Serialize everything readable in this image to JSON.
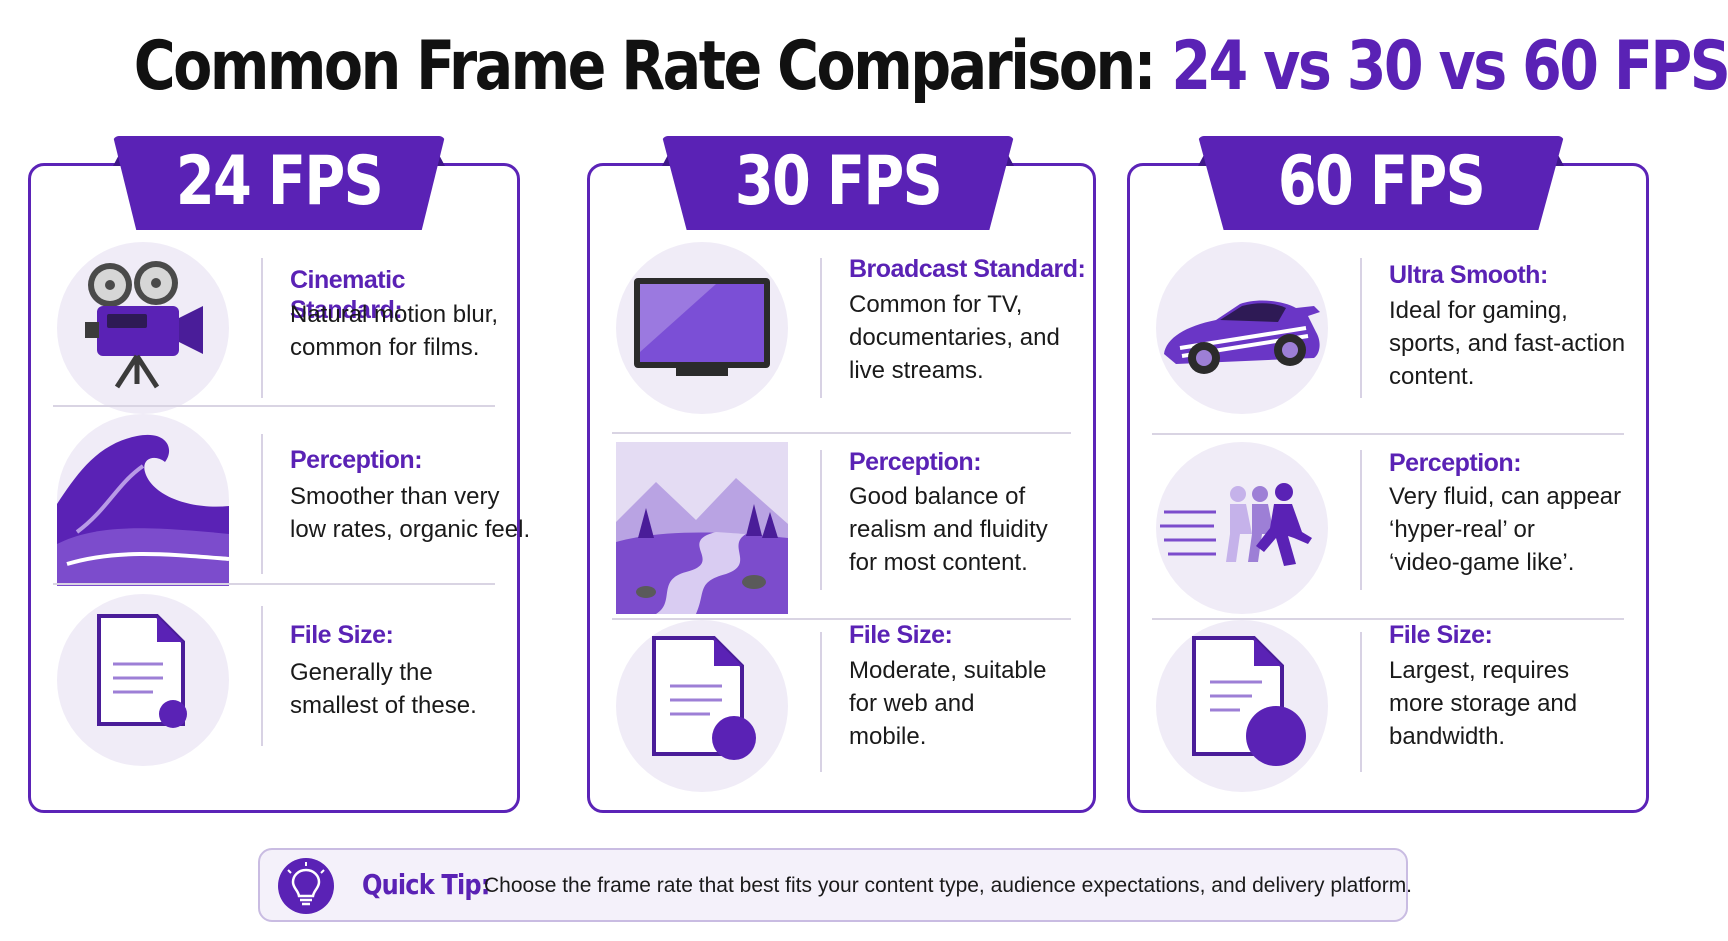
{
  "title": {
    "prefix": "Common Frame Rate Comparison: ",
    "accent": "24 vs 30 vs 60 FPS"
  },
  "colors": {
    "accent": "#5a22b5",
    "card_border": "#5b23b7",
    "icon_bg": "#f0ecf7"
  },
  "cards": [
    {
      "label": "24 FPS",
      "rows": [
        {
          "icon": "film-camera-icon",
          "heading": "Cinematic Standard:",
          "lines": [
            "Natural motion blur,",
            "common for films."
          ]
        },
        {
          "icon": "wave-icon",
          "heading": "Perception:",
          "lines": [
            "Smoother than very",
            "low rates, organic feel."
          ]
        },
        {
          "icon": "small-file-icon",
          "heading": "File Size:",
          "lines": [
            "Generally the",
            "smallest of these."
          ]
        }
      ]
    },
    {
      "label": "30 FPS",
      "rows": [
        {
          "icon": "tv-icon",
          "heading": "Broadcast Standard:",
          "lines": [
            "Common for TV,",
            "documentaries, and",
            "live streams."
          ]
        },
        {
          "icon": "river-landscape-icon",
          "heading": "Perception:",
          "lines": [
            "Good balance of",
            "realism and fluidity",
            "for most content."
          ]
        },
        {
          "icon": "medium-file-icon",
          "heading": "File Size:",
          "lines": [
            "Moderate, suitable",
            "for web and",
            "mobile."
          ]
        }
      ]
    },
    {
      "label": "60 FPS",
      "rows": [
        {
          "icon": "race-car-icon",
          "heading": "Ultra Smooth:",
          "lines": [
            "Ideal for gaming,",
            "sports, and fast-action",
            "content."
          ]
        },
        {
          "icon": "running-figures-icon",
          "heading": "Perception:",
          "lines": [
            "Very fluid, can appear",
            "‘hyper-real’ or",
            "‘video-game like’."
          ]
        },
        {
          "icon": "large-file-icon",
          "heading": "File Size:",
          "lines": [
            "Largest, requires",
            "more storage and",
            "bandwidth."
          ]
        }
      ]
    }
  ],
  "tip": {
    "icon": "lightbulb-icon",
    "label": "Quick Tip:",
    "text": "Choose the frame rate that best fits your content type, audience expectations, and delivery platform."
  }
}
